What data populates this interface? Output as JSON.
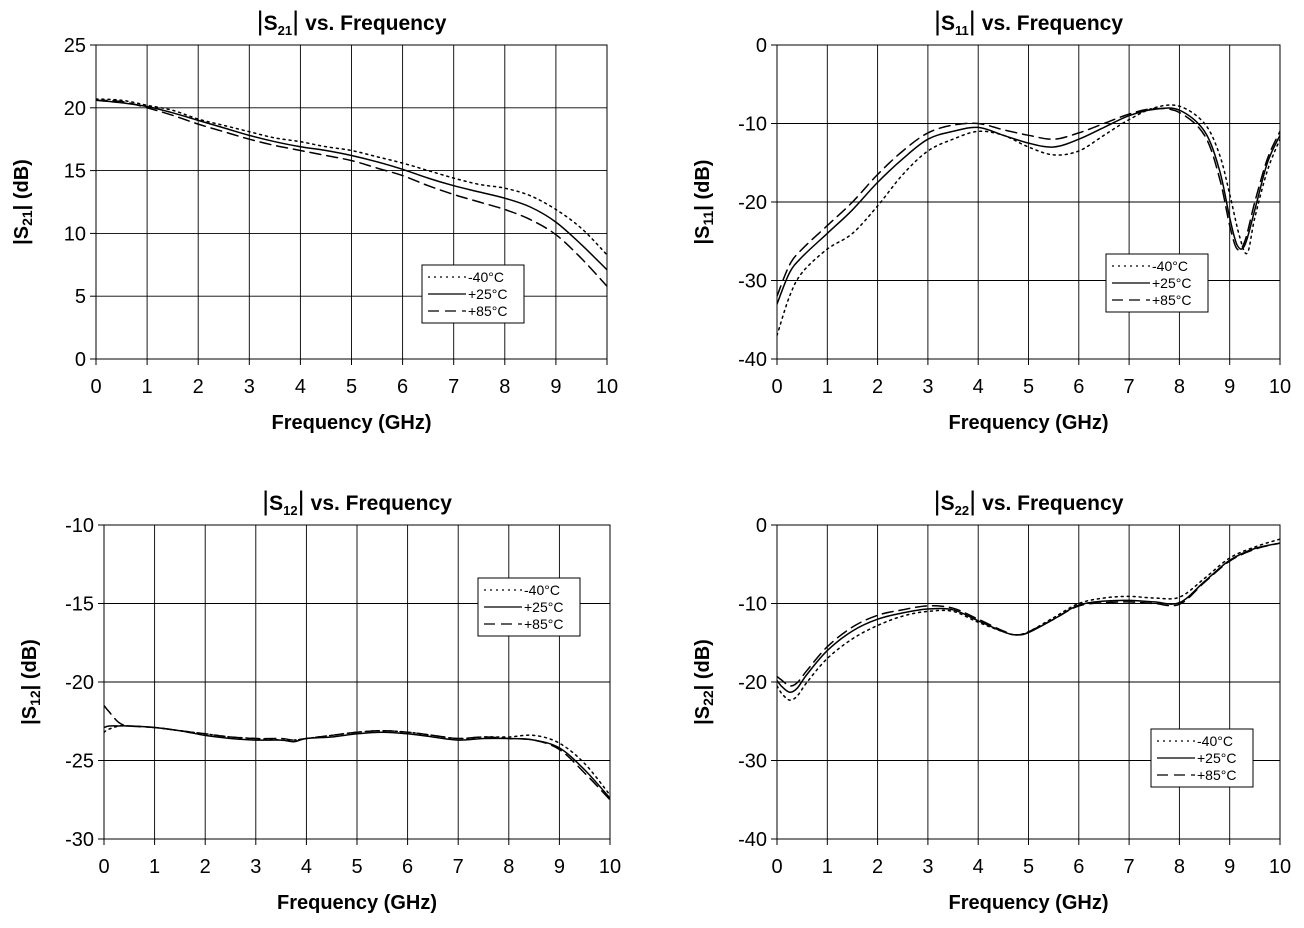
{
  "chart_data": [
    {
      "type": "line",
      "title": {
        "param": "S",
        "sub": "21",
        "suffix": "vs. Frequency"
      },
      "xlabel": "Frequency (GHz)",
      "ylabel": {
        "param": "|S",
        "sub": "21",
        "suffix": "| (dB)"
      },
      "xlim": [
        0,
        10
      ],
      "ylim": [
        0,
        25
      ],
      "xticks": [
        0,
        1,
        2,
        3,
        4,
        5,
        6,
        7,
        8,
        9,
        10
      ],
      "yticks": [
        0,
        5,
        10,
        15,
        20,
        25
      ],
      "grid": true,
      "legend_position": "bottom-right",
      "series": [
        {
          "name": "-40°C",
          "dash": "dotted",
          "x": [
            0,
            0.5,
            1,
            1.5,
            2,
            2.5,
            3,
            3.5,
            4,
            4.5,
            5,
            5.5,
            6,
            6.5,
            7,
            7.5,
            8,
            8.5,
            9,
            9.5,
            10
          ],
          "y": [
            20.7,
            20.6,
            20.2,
            19.8,
            19.1,
            18.6,
            18.1,
            17.6,
            17.3,
            16.9,
            16.6,
            16.1,
            15.6,
            15.0,
            14.4,
            13.9,
            13.6,
            13.0,
            11.9,
            10.4,
            8.3
          ]
        },
        {
          "name": "+25°C",
          "dash": "solid",
          "x": [
            0,
            0.5,
            1,
            1.5,
            2,
            2.5,
            3,
            3.5,
            4,
            4.5,
            5,
            5.5,
            6,
            6.5,
            7,
            7.5,
            8,
            8.5,
            9,
            9.5,
            10
          ],
          "y": [
            20.6,
            20.4,
            20.1,
            19.6,
            19.0,
            18.4,
            17.8,
            17.3,
            16.9,
            16.6,
            16.2,
            15.7,
            15.1,
            14.4,
            13.8,
            13.3,
            12.8,
            12.1,
            10.9,
            9.1,
            7.1
          ]
        },
        {
          "name": "+85°C",
          "dash": "dashed",
          "x": [
            0,
            0.5,
            1,
            1.5,
            2,
            2.5,
            3,
            3.5,
            4,
            4.5,
            5,
            5.5,
            6,
            6.5,
            7,
            7.5,
            8,
            8.5,
            9,
            9.5,
            10
          ],
          "y": [
            20.6,
            20.5,
            20.0,
            19.4,
            18.7,
            18.1,
            17.5,
            17.0,
            16.6,
            16.2,
            15.8,
            15.2,
            14.6,
            13.8,
            13.1,
            12.5,
            11.9,
            11.1,
            9.9,
            8.0,
            5.8
          ]
        }
      ]
    },
    {
      "type": "line",
      "title": {
        "param": "S",
        "sub": "11",
        "suffix": "vs. Frequency"
      },
      "xlabel": "Frequency (GHz)",
      "ylabel": {
        "param": "|S",
        "sub": "11",
        "suffix": "| (dB)"
      },
      "xlim": [
        0,
        10
      ],
      "ylim": [
        -40,
        0
      ],
      "xticks": [
        0,
        1,
        2,
        3,
        4,
        5,
        6,
        7,
        8,
        9,
        10
      ],
      "yticks": [
        0,
        -10,
        -20,
        -30,
        -40
      ],
      "grid": true,
      "legend_position": "bottom-right",
      "series": [
        {
          "name": "-40°C",
          "dash": "dotted",
          "x": [
            0,
            0.25,
            0.5,
            1,
            1.5,
            2,
            2.5,
            3,
            3.5,
            4,
            4.5,
            5,
            5.5,
            6,
            6.5,
            7,
            7.5,
            8,
            8.5,
            8.8,
            9.0,
            9.2,
            9.35,
            9.5,
            9.75,
            10
          ],
          "y": [
            -37,
            -32,
            -29,
            -26,
            -24,
            -20.5,
            -16.5,
            -13.5,
            -12,
            -11,
            -11.5,
            -13,
            -14,
            -13.5,
            -11.5,
            -9.5,
            -8,
            -7.8,
            -10,
            -14,
            -19,
            -24.5,
            -26.5,
            -22,
            -16,
            -12
          ]
        },
        {
          "name": "+25°C",
          "dash": "solid",
          "x": [
            0,
            0.25,
            0.5,
            1,
            1.5,
            2,
            2.5,
            3,
            3.5,
            4,
            4.5,
            5,
            5.5,
            6,
            6.5,
            7,
            7.5,
            8,
            8.5,
            8.8,
            9.0,
            9.15,
            9.3,
            9.5,
            9.75,
            10
          ],
          "y": [
            -33,
            -29,
            -27,
            -24,
            -21,
            -17.5,
            -14.5,
            -12,
            -11,
            -10.5,
            -11.5,
            -12.5,
            -13,
            -12,
            -10.5,
            -9,
            -8.2,
            -8.3,
            -11,
            -16,
            -22,
            -25.5,
            -25.5,
            -21,
            -15,
            -11.5
          ]
        },
        {
          "name": "+85°C",
          "dash": "dashed",
          "x": [
            0,
            0.25,
            0.5,
            1,
            1.5,
            2,
            2.5,
            3,
            3.5,
            4,
            4.5,
            5,
            5.5,
            6,
            6.5,
            7,
            7.5,
            8,
            8.5,
            8.8,
            9.0,
            9.15,
            9.3,
            9.5,
            9.75,
            10
          ],
          "y": [
            -32,
            -28,
            -26,
            -23,
            -20,
            -16.5,
            -13.5,
            -11.2,
            -10.2,
            -10,
            -10.8,
            -11.5,
            -12,
            -11.2,
            -10,
            -8.8,
            -8.1,
            -8.6,
            -11.5,
            -17,
            -23,
            -26,
            -25,
            -20,
            -14.5,
            -11
          ]
        }
      ]
    },
    {
      "type": "line",
      "title": {
        "param": "S",
        "sub": "12",
        "suffix": "vs. Frequency"
      },
      "xlabel": "Frequency (GHz)",
      "ylabel": {
        "param": "|S",
        "sub": "12",
        "suffix": "| (dB)"
      },
      "xlim": [
        0,
        10
      ],
      "ylim": [
        -30,
        -10
      ],
      "xticks": [
        0,
        1,
        2,
        3,
        4,
        5,
        6,
        7,
        8,
        9,
        10
      ],
      "yticks": [
        -10,
        -15,
        -20,
        -25,
        -30
      ],
      "grid": true,
      "legend_position": "top-right",
      "series": [
        {
          "name": "-40°C",
          "dash": "dotted",
          "x": [
            0,
            0.1,
            0.3,
            0.5,
            1,
            1.5,
            2,
            2.5,
            3,
            3.5,
            3.75,
            4,
            4.5,
            5,
            5.5,
            6,
            6.5,
            7,
            7.5,
            8,
            8.5,
            9,
            9.5,
            10
          ],
          "y": [
            -23.2,
            -23.0,
            -22.8,
            -22.8,
            -22.9,
            -23.1,
            -23.3,
            -23.5,
            -23.6,
            -23.7,
            -23.7,
            -23.6,
            -23.4,
            -23.2,
            -23.1,
            -23.2,
            -23.4,
            -23.6,
            -23.5,
            -23.5,
            -23.4,
            -23.9,
            -25.2,
            -27.2
          ]
        },
        {
          "name": "+25°C",
          "dash": "solid",
          "x": [
            0,
            0.1,
            0.3,
            0.5,
            1,
            1.5,
            2,
            2.5,
            3,
            3.5,
            3.75,
            4,
            4.5,
            5,
            5.5,
            6,
            6.5,
            7,
            7.5,
            8,
            8.5,
            9,
            9.5,
            10
          ],
          "y": [
            -22.9,
            -22.8,
            -22.8,
            -22.8,
            -22.9,
            -23.1,
            -23.4,
            -23.6,
            -23.7,
            -23.7,
            -23.8,
            -23.6,
            -23.5,
            -23.3,
            -23.2,
            -23.3,
            -23.5,
            -23.7,
            -23.6,
            -23.6,
            -23.7,
            -24.2,
            -25.6,
            -27.4
          ]
        },
        {
          "name": "+85°C",
          "dash": "dashed",
          "x": [
            0,
            0.1,
            0.3,
            0.5,
            1,
            1.5,
            2,
            2.5,
            3,
            3.5,
            3.75,
            4,
            4.5,
            5,
            5.5,
            6,
            6.5,
            7,
            7.5,
            8,
            8.5,
            9,
            9.5,
            10
          ],
          "y": [
            -21.5,
            -21.9,
            -22.6,
            -22.8,
            -22.9,
            -23.1,
            -23.3,
            -23.5,
            -23.6,
            -23.6,
            -23.7,
            -23.6,
            -23.4,
            -23.2,
            -23.1,
            -23.2,
            -23.4,
            -23.6,
            -23.5,
            -23.6,
            -23.7,
            -24.3,
            -25.8,
            -27.5
          ]
        }
      ]
    },
    {
      "type": "line",
      "title": {
        "param": "S",
        "sub": "22",
        "suffix": "vs. Frequency"
      },
      "xlabel": "Frequency (GHz)",
      "ylabel": {
        "param": "|S",
        "sub": "22",
        "suffix": "| (dB)"
      },
      "xlim": [
        0,
        10
      ],
      "ylim": [
        -40,
        0
      ],
      "xticks": [
        0,
        1,
        2,
        3,
        4,
        5,
        6,
        7,
        8,
        9,
        10
      ],
      "yticks": [
        0,
        -10,
        -20,
        -30,
        -40
      ],
      "grid": true,
      "legend_position": "bottom-right",
      "series": [
        {
          "name": "-40°C",
          "dash": "dotted",
          "x": [
            0,
            0.1,
            0.25,
            0.4,
            0.6,
            1,
            1.5,
            2,
            2.5,
            3,
            3.5,
            4,
            4.5,
            4.75,
            5,
            5.5,
            6,
            6.5,
            7,
            7.5,
            8,
            8.5,
            9,
            9.5,
            10
          ],
          "y": [
            -20.5,
            -21.5,
            -22.3,
            -21.8,
            -20,
            -17,
            -14.5,
            -12.8,
            -11.6,
            -11,
            -11,
            -12.4,
            -13.6,
            -14,
            -13.6,
            -11.8,
            -10,
            -9.3,
            -9.1,
            -9.3,
            -9.2,
            -6.8,
            -4.2,
            -2.8,
            -1.8
          ]
        },
        {
          "name": "+25°C",
          "dash": "solid",
          "x": [
            0,
            0.1,
            0.25,
            0.4,
            0.6,
            1,
            1.5,
            2,
            2.5,
            3,
            3.5,
            4,
            4.5,
            4.75,
            5,
            5.5,
            6,
            6.5,
            7,
            7.5,
            8,
            8.5,
            9,
            9.5,
            10
          ],
          "y": [
            -19.8,
            -20.6,
            -21.3,
            -20.8,
            -19,
            -16,
            -13.5,
            -12,
            -11.2,
            -10.7,
            -10.8,
            -12.2,
            -13.6,
            -14,
            -13.7,
            -12,
            -10.2,
            -9.7,
            -9.6,
            -9.8,
            -9.9,
            -7.2,
            -4.5,
            -3.0,
            -2.3
          ]
        },
        {
          "name": "+85°C",
          "dash": "dashed",
          "x": [
            0,
            0.1,
            0.25,
            0.4,
            0.6,
            1,
            1.5,
            2,
            2.5,
            3,
            3.5,
            4,
            4.5,
            4.75,
            5,
            5.5,
            6,
            6.5,
            7,
            7.5,
            8,
            8.5,
            9,
            9.5,
            10
          ],
          "y": [
            -19.3,
            -19.8,
            -20.5,
            -20.1,
            -18.5,
            -15.5,
            -13,
            -11.5,
            -10.8,
            -10.3,
            -10.6,
            -12,
            -13.5,
            -14,
            -13.6,
            -12,
            -10.3,
            -9.9,
            -9.8,
            -10,
            -10.1,
            -7.3,
            -4.6,
            -3.1,
            -2.3
          ]
        }
      ]
    }
  ]
}
